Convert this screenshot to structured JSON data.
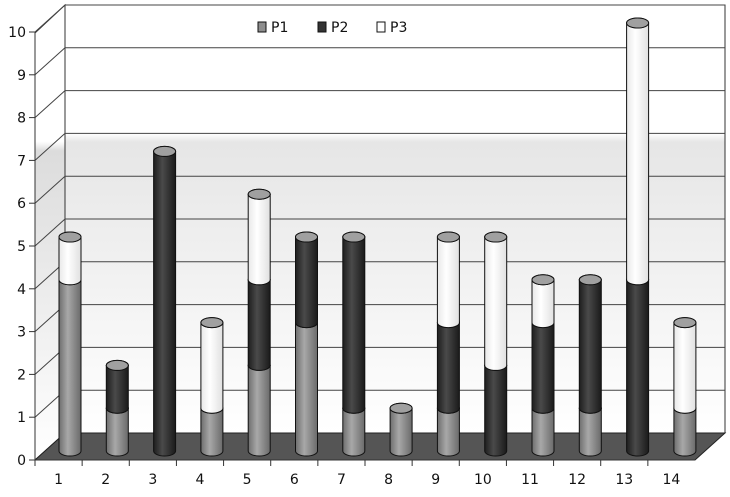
{
  "chart_data": {
    "type": "bar",
    "stacked": true,
    "style": "3d-cylinder",
    "title": "",
    "xlabel": "",
    "ylabel": "",
    "categories": [
      "1",
      "2",
      "3",
      "4",
      "5",
      "6",
      "7",
      "8",
      "9",
      "10",
      "11",
      "12",
      "13",
      "14"
    ],
    "series": [
      {
        "name": "P1",
        "color": "#8e8e8e",
        "values": [
          4,
          1,
          0,
          1,
          2,
          3,
          1,
          1,
          1,
          0,
          1,
          1,
          0,
          1
        ]
      },
      {
        "name": "P2",
        "color": "#333333",
        "values": [
          0,
          1,
          7,
          0,
          2,
          2,
          4,
          0,
          2,
          2,
          2,
          3,
          4,
          0
        ]
      },
      {
        "name": "P3",
        "color": "#ffffff",
        "values": [
          1,
          0,
          0,
          2,
          2,
          0,
          0,
          0,
          2,
          3,
          1,
          0,
          6,
          2
        ]
      }
    ],
    "ylim": [
      0,
      10
    ],
    "yticks": [
      "0",
      "1",
      "2",
      "3",
      "4",
      "5",
      "6",
      "7",
      "8",
      "9",
      "10"
    ],
    "grid": true,
    "legend_position": "top-center"
  }
}
